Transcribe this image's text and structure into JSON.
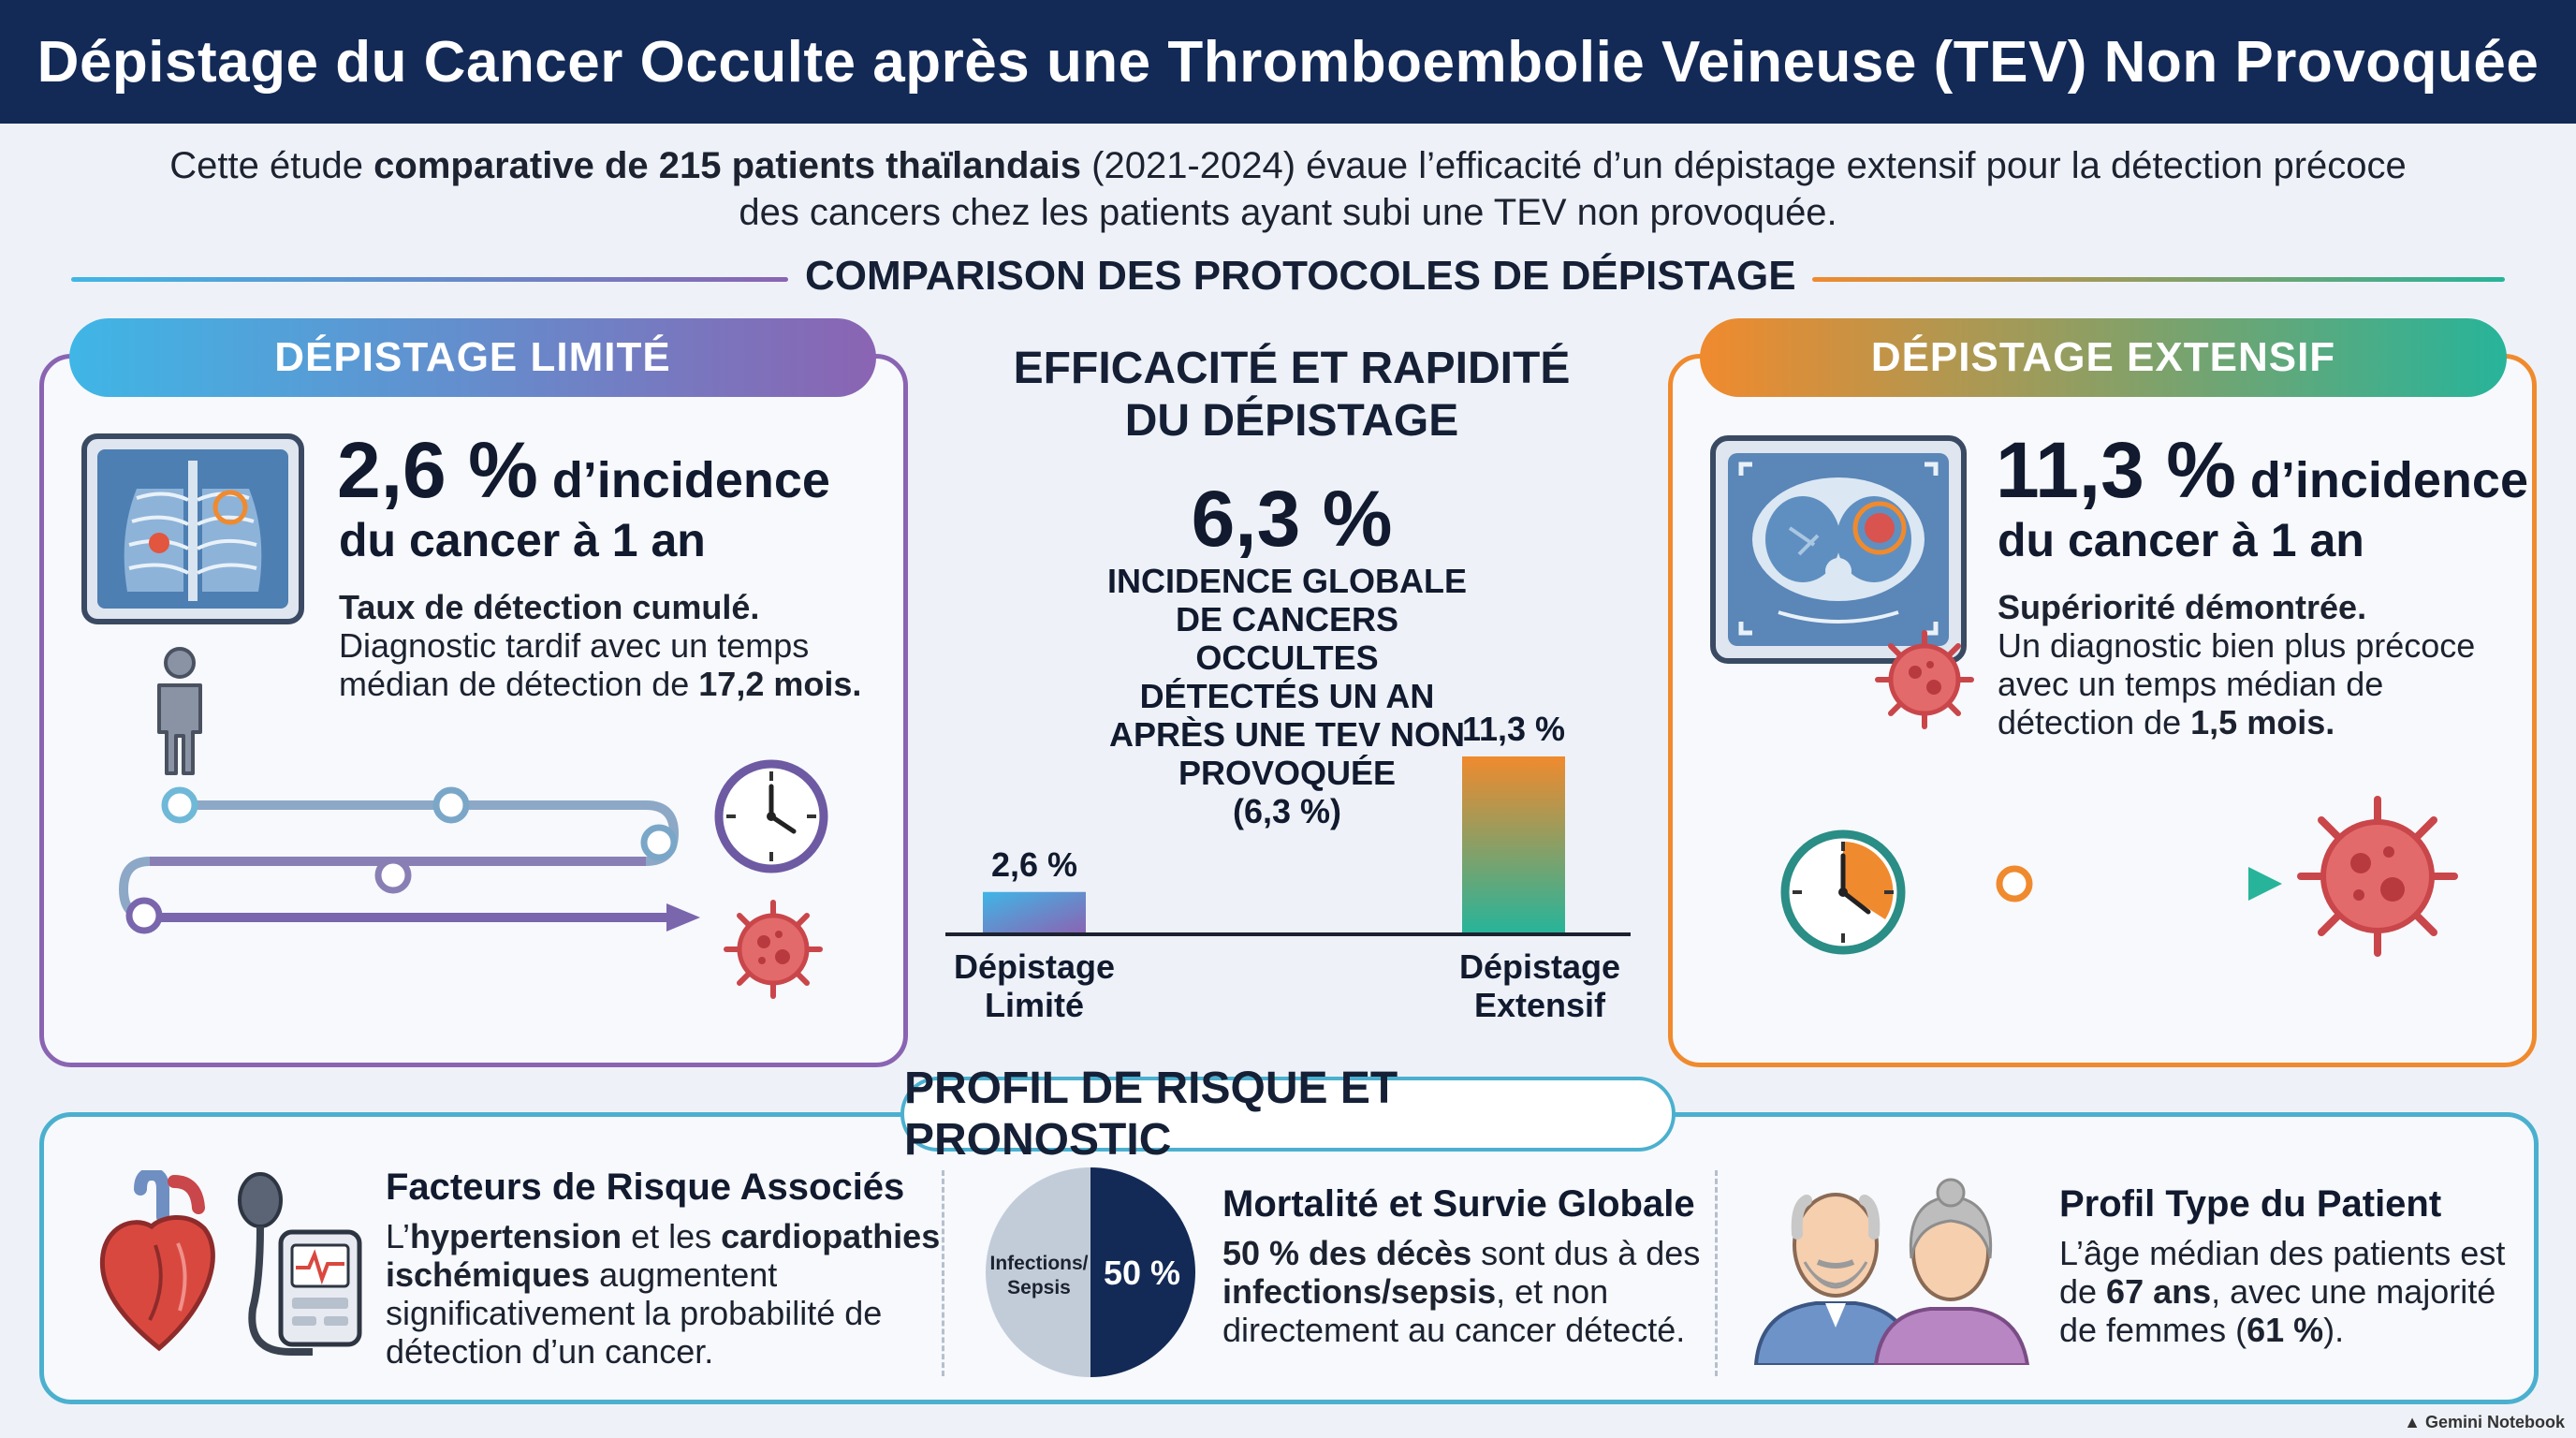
{
  "header": {
    "title": "Dépistage du Cancer Occulte après une Thromboembolie Veineuse (TEV) Non Provoquée"
  },
  "intro": {
    "prefix": "Cette étude ",
    "bold": "comparative de 215 patients thaïlandais",
    "suffix_line1": " (2021-2024) évaue l’efficacité d’un dépistage extensif pour la détection précoce",
    "line2": "des cancers chez les patients ayant subi une TEV non provoquée."
  },
  "section_protocols": {
    "title": "COMPARISON DES PROTOCOLES DE DÉPISTAGE"
  },
  "limited": {
    "pill": "DÉPISTAGE LIMITÉ",
    "stat_num": "2,6 %",
    "stat_rest": " d’incidence",
    "stat_line2": "du cancer à 1 an",
    "desc_bold": "Taux de détection cumulé.",
    "desc_line2": "Diagnostic tardif avec un temps",
    "desc_line3_prefix": "médian de détection de ",
    "desc_line3_bold": "17,2 mois."
  },
  "extensive": {
    "pill": "DÉPISTAGE EXTENSIF",
    "stat_num": "11,3 %",
    "stat_rest": " d’incidence",
    "stat_line2": "du cancer à 1 an",
    "desc_bold": "Supériorité démontrée.",
    "desc_line2": "Un diagnostic bien plus précoce",
    "desc_line3": "avec un temps médian de",
    "desc_line4_prefix": "détection de ",
    "desc_line4_bold": "1,5 mois."
  },
  "middle": {
    "title_line1": "EFFICACITÉ ET RAPIDITÉ",
    "title_line2": "DU DÉPISTAGE",
    "overall_pct": "6,3 %",
    "caption_lines": [
      "INCIDENCE GLOBALE",
      "DE CANCERS OCCULTES",
      "DÉTECTÉS UN AN",
      "APRÈS UNE TEV NON",
      "PROVOQUÉE",
      "(6,3 %)"
    ]
  },
  "chart_data": {
    "type": "bar",
    "categories": [
      "Dépistage Limité",
      "Dépistage Extensif"
    ],
    "category_lines": [
      [
        "Dépistage",
        "Limité"
      ],
      [
        "Dépistage",
        "Extensif"
      ]
    ],
    "values": [
      2.6,
      11.3
    ],
    "value_labels": [
      "2,6 %",
      "11,3 %"
    ],
    "ylim": [
      0,
      12
    ]
  },
  "risk": {
    "title": "PROFIL DE RISQUE ET PRONOSTIC",
    "factors": {
      "title": "Facteurs de Risque Associés",
      "l1_prefix": "L’",
      "l1_bold1": "hypertension",
      "l1_mid": " et les ",
      "l1_bold2": "cardiopathies",
      "l2_bold": "ischémiques",
      "l2_suffix": " augmentent",
      "l3": "significativement la probabilité de",
      "l4": "détection d’un cancer."
    },
    "mortality": {
      "title": "Mortalité et Survie Globale",
      "l1_bold": "50 % des décès",
      "l1_suffix": " sont dus à des",
      "l2_bold": "infections/sepsis",
      "l2_suffix": ", et non",
      "l3": "directement au cancer détecté.",
      "pie_left_label_1": "Infections/",
      "pie_left_label_2": "Sepsis",
      "pie_right_label": "50 %",
      "pie_share": 0.5
    },
    "profile": {
      "title": "Profil Type du Patient",
      "l1": "L’âge médian des patients est",
      "l2_prefix": "de ",
      "l2_bold": "67 ans",
      "l2_suffix": ", avec une majorité",
      "l3_prefix": "de femmes (",
      "l3_bold": "61 %",
      "l3_suffix": ")."
    }
  },
  "footer": {
    "brand": "Gemini Notebook"
  },
  "colors": {
    "navy": "#132a57",
    "limited_gradient": [
      "#3fb6e6",
      "#8a64b3"
    ],
    "extensive_gradient": [
      "#f08a2e",
      "#27b49a"
    ],
    "teal": "#2aa895",
    "virus": "#d9534f"
  }
}
